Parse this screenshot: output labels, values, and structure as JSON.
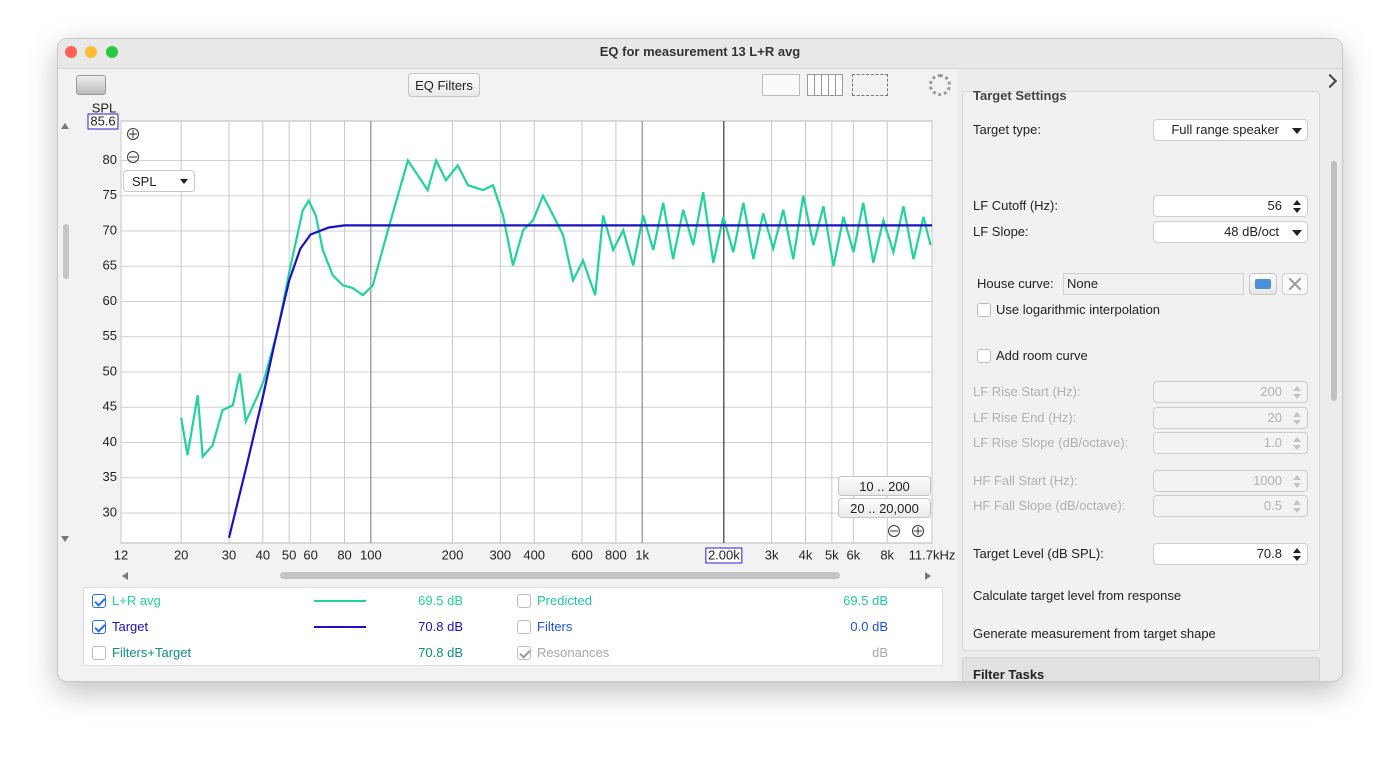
{
  "window": {
    "title": "EQ for measurement 13 L+R avg"
  },
  "toolbar": {
    "button": "EQ Filters"
  },
  "chart_data": {
    "type": "line",
    "y_label": "SPL",
    "y_cursor": 85.6,
    "x_cursor": {
      "value": 2000,
      "label": "2.00k"
    },
    "x_scale": "log",
    "xlim": [
      12,
      11700
    ],
    "ylim": [
      25.75,
      85.6
    ],
    "xticks": [
      12,
      20,
      30,
      40,
      50,
      60,
      80,
      100,
      200,
      300,
      400,
      600,
      800,
      {
        "value": 1000,
        "label": "1k"
      },
      {
        "value": 3000,
        "label": "3k"
      },
      {
        "value": 4000,
        "label": "4k"
      },
      {
        "value": 5000,
        "label": "5k"
      },
      {
        "value": 6000,
        "label": "6k"
      },
      {
        "value": 8000,
        "label": "8k"
      },
      {
        "value": 11700,
        "label": "11.7kHz"
      }
    ],
    "yticks": [
      30,
      35,
      40,
      45,
      50,
      55,
      60,
      65,
      70,
      75,
      80
    ],
    "grid": true,
    "selector": "SPL",
    "range_buttons": [
      "10 .. 200",
      "20 .. 20,000"
    ],
    "series": [
      {
        "name": "L+R avg",
        "color": "#1fd39c",
        "checked": true,
        "reading": "69.5 dB",
        "x": [
          20,
          21.1,
          23,
          24,
          26.1,
          28.4,
          31,
          32.9,
          34.6,
          38.3,
          40.3,
          45.4,
          50.2,
          56.1,
          59,
          62.7,
          66.5,
          72.4,
          78.8,
          85.9,
          93.4,
          101.7,
          115.6,
          137,
          149,
          162,
          174,
          189,
          209,
          228,
          259,
          282,
          307,
          334,
          364,
          396,
          431,
          470,
          511,
          556,
          605,
          671,
          718,
          782,
          851,
          927,
          1009,
          1099,
          1195,
          1300,
          1416,
          1542,
          1679,
          1828,
          1990,
          2167,
          2360,
          2570,
          2794,
          3041,
          3311,
          3606,
          3926,
          4276,
          4656,
          5070,
          5521,
          6012,
          6531,
          7112,
          7745,
          8433,
          9183,
          10000,
          10890,
          11560
        ],
        "values": [
          43.5,
          38.2,
          46.7,
          38,
          39.6,
          44.6,
          45.3,
          49.8,
          43,
          46.7,
          48.8,
          55.9,
          64.4,
          72.9,
          74.3,
          72.2,
          67.3,
          63.7,
          62.3,
          61.9,
          60.9,
          62.3,
          70.1,
          80,
          77.9,
          75.8,
          80,
          77.2,
          79.3,
          76.5,
          75.8,
          76.5,
          72.2,
          65.1,
          70.1,
          71.5,
          75,
          72.2,
          69.4,
          63,
          65.8,
          60.9,
          72.2,
          67.3,
          70.1,
          65.1,
          72.2,
          67.3,
          74,
          66,
          73,
          68,
          75.5,
          65.5,
          72,
          67,
          74,
          66,
          72.5,
          67.5,
          73,
          66,
          75,
          68,
          73.5,
          65,
          72,
          67,
          74,
          65.5,
          71.5,
          67,
          73.5,
          66,
          72,
          68
        ]
      },
      {
        "name": "Target",
        "color": "#1c0fc4",
        "checked": true,
        "reading": "70.8 dB",
        "x": [
          30,
          35,
          40,
          45,
          50,
          55,
          60,
          70,
          80,
          100,
          11700
        ],
        "values": [
          26.5,
          37,
          46.5,
          55.5,
          63,
          67.5,
          69.5,
          70.5,
          70.8,
          70.8,
          70.8
        ]
      }
    ],
    "other_traces": [
      {
        "name": "Predicted",
        "checked": false,
        "reading": "69.5 dB",
        "color": "#1fc9a2"
      },
      {
        "name": "Filters",
        "checked": false,
        "reading": "0.0 dB",
        "color": "#1f4fe0"
      },
      {
        "name": "Filters+Target",
        "checked": false,
        "reading": "70.8 dB",
        "color": "#0e8f80"
      },
      {
        "name": "Resonances",
        "checked": true,
        "reading": "dB",
        "color": "#a8a8a8"
      }
    ]
  },
  "panel": {
    "title": "Target Settings",
    "fields": [
      {
        "label": "Target type:",
        "value": "Full range speaker",
        "control": "dropdown"
      },
      {
        "label": "LF Cutoff (Hz):",
        "value": "56",
        "control": "spinner"
      },
      {
        "label": "LF Slope:",
        "value": "48 dB/oct",
        "control": "dropdown"
      },
      {
        "label": "House curve:",
        "value": "None",
        "control": "file"
      },
      {
        "label": "Use logarithmic interpolation",
        "control": "checkbox",
        "checked": false
      },
      {
        "label": "Add room curve",
        "control": "checkbox",
        "checked": false
      },
      {
        "label": "LF Rise Start (Hz):",
        "value": "200",
        "control": "spinner",
        "enabled": false
      },
      {
        "label": "LF Rise End (Hz):",
        "value": "20",
        "control": "spinner",
        "enabled": false
      },
      {
        "label": "LF Rise Slope (dB/octave):",
        "value": "1.0",
        "control": "spinner",
        "enabled": false
      },
      {
        "label": "HF Fall Start (Hz):",
        "value": "1000",
        "control": "spinner",
        "enabled": false
      },
      {
        "label": "HF Fall Slope (dB/octave):",
        "value": "0.5",
        "control": "spinner",
        "enabled": false
      },
      {
        "label": "Target Level (dB SPL):",
        "value": "70.8",
        "control": "spinner"
      },
      {
        "label": "Calculate target level from response",
        "control": "action"
      },
      {
        "label": "Generate measurement from target shape",
        "control": "action"
      }
    ],
    "next_section": "Filter Tasks"
  }
}
